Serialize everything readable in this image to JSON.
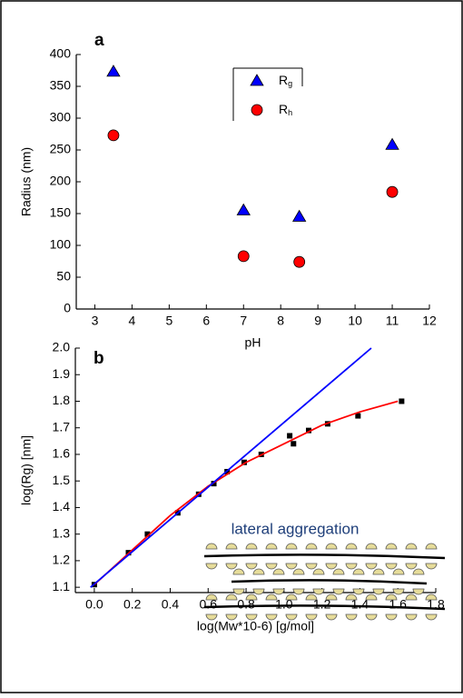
{
  "chart_data": [
    {
      "type": "scatter",
      "panel_label": "a",
      "x_label": "pH",
      "y_label": "Radius (nm)",
      "x": [
        3.5,
        7,
        8.5,
        11
      ],
      "series": [
        {
          "name": "Rg",
          "color": "#0000ff",
          "marker": "triangle",
          "values": [
            373,
            155,
            145,
            258
          ]
        },
        {
          "name": "Rh",
          "color": "#ff0000",
          "marker": "circle",
          "values": [
            273,
            83,
            74,
            184
          ]
        }
      ],
      "xlim": [
        2.5,
        12
      ],
      "xticks": [
        3,
        4,
        5,
        6,
        7,
        8,
        9,
        10,
        11,
        12
      ],
      "ylim": [
        0,
        400
      ],
      "yticks": [
        0,
        50,
        100,
        150,
        200,
        250,
        300,
        350,
        400
      ],
      "legend": "top-center"
    },
    {
      "type": "scatter",
      "panel_label": "b",
      "x_label": "log(Mw*10-6) [g/mol]",
      "y_label": "log(Rg) [nm]",
      "annotation": "lateral aggregation",
      "series": [
        {
          "color": "#000000",
          "marker": "square",
          "x": [
            0.0,
            0.18,
            0.28,
            0.44,
            0.55,
            0.63,
            0.7,
            0.79,
            0.88,
            1.03,
            1.05,
            1.13,
            1.23,
            1.39,
            1.62
          ],
          "values": [
            1.11,
            1.23,
            1.3,
            1.38,
            1.45,
            1.49,
            1.535,
            1.57,
            1.6,
            1.67,
            1.64,
            1.69,
            1.715,
            1.745,
            1.8
          ]
        },
        {
          "color": "#ff0000",
          "marker": "line",
          "x": [
            0.0,
            0.2,
            0.4,
            0.6,
            0.8,
            1.0,
            1.2,
            1.4,
            1.6
          ],
          "values": [
            1.11,
            1.24,
            1.37,
            1.48,
            1.57,
            1.64,
            1.71,
            1.76,
            1.8
          ]
        },
        {
          "color": "#0000ff",
          "marker": "line",
          "x": [
            -0.02,
            1.46
          ],
          "values": [
            1.1,
            2.0
          ]
        }
      ],
      "xlim": [
        -0.1,
        1.8
      ],
      "xticks": [
        {
          "value": 0,
          "label": "0.0"
        },
        0.2,
        0.4,
        0.6,
        0.8,
        {
          "value": 1,
          "label": "1.0"
        },
        1.2,
        1.4,
        1.6,
        1.8
      ],
      "ylim": [
        1.08,
        2.0
      ],
      "yticks": [
        1.1,
        1.2,
        1.3,
        1.4,
        1.5,
        1.6,
        1.7,
        1.8,
        1.9,
        {
          "value": 2,
          "label": "2.0"
        }
      ]
    }
  ]
}
